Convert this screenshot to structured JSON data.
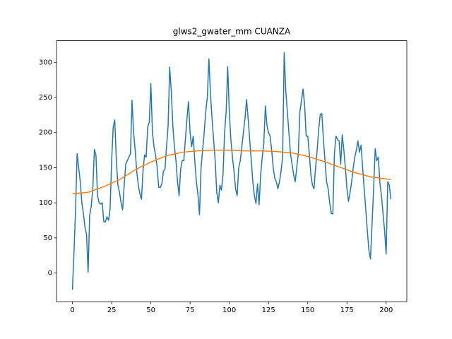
{
  "chart_data": {
    "type": "line",
    "title": "glws2_gwater_mm CUANZA",
    "xlim": [
      -10.15,
      213.15
    ],
    "ylim": [
      -40.9,
      330.9
    ],
    "xticks": [
      0,
      25,
      50,
      75,
      100,
      125,
      150,
      175,
      200
    ],
    "yticks": [
      0,
      50,
      100,
      150,
      200,
      250,
      300
    ],
    "series": [
      {
        "color": "#1f77b4",
        "x": [
          0,
          1,
          2,
          3,
          4,
          5,
          6,
          7,
          8,
          9,
          10,
          11,
          12,
          13,
          14,
          15,
          16,
          17,
          18,
          19,
          20,
          21,
          22,
          23,
          24,
          25,
          26,
          27,
          28,
          29,
          30,
          31,
          32,
          33,
          34,
          35,
          36,
          37,
          38,
          39,
          40,
          41,
          42,
          43,
          44,
          45,
          46,
          47,
          48,
          49,
          50,
          51,
          52,
          53,
          54,
          55,
          56,
          57,
          58,
          59,
          60,
          61,
          62,
          63,
          64,
          65,
          66,
          67,
          68,
          69,
          70,
          71,
          72,
          73,
          74,
          75,
          76,
          77,
          78,
          79,
          80,
          81,
          82,
          83,
          84,
          85,
          86,
          87,
          88,
          89,
          90,
          91,
          92,
          93,
          94,
          95,
          96,
          97,
          98,
          99,
          100,
          101,
          102,
          103,
          104,
          105,
          106,
          107,
          108,
          109,
          110,
          111,
          112,
          113,
          114,
          115,
          116,
          117,
          118,
          119,
          120,
          121,
          122,
          123,
          124,
          125,
          126,
          127,
          128,
          129,
          130,
          131,
          132,
          133,
          134,
          135,
          136,
          137,
          138,
          139,
          140,
          141,
          142,
          143,
          144,
          145,
          146,
          147,
          148,
          149,
          150,
          151,
          152,
          153,
          154,
          155,
          156,
          157,
          158,
          159,
          160,
          161,
          162,
          163,
          164,
          165,
          166,
          167,
          168,
          169,
          170,
          171,
          172,
          173,
          174,
          175,
          176,
          177,
          178,
          179,
          180,
          181,
          182,
          183,
          184,
          185,
          186,
          187,
          188,
          189,
          190,
          191,
          192,
          193,
          194,
          195,
          196,
          197,
          198,
          199,
          200,
          201,
          202,
          203
        ],
        "values": [
          -24,
          30,
          90,
          170,
          150,
          130,
          100,
          85,
          65,
          55,
          1,
          82,
          95,
          120,
          176,
          168,
          110,
          100,
          98,
          100,
          73,
          73,
          80,
          75,
          90,
          160,
          208,
          218,
          160,
          125,
          115,
          100,
          90,
          125,
          155,
          160,
          165,
          170,
          246,
          200,
          175,
          145,
          125,
          113,
          105,
          145,
          168,
          165,
          208,
          215,
          270,
          200,
          180,
          168,
          150,
          122,
          122,
          127,
          145,
          148,
          180,
          210,
          293,
          260,
          210,
          180,
          160,
          130,
          110,
          148,
          160,
          160,
          190,
          220,
          244,
          200,
          180,
          195,
          160,
          130,
          112,
          83,
          150,
          175,
          200,
          230,
          250,
          305,
          255,
          220,
          190,
          160,
          115,
          100,
          125,
          118,
          140,
          200,
          230,
          294,
          230,
          190,
          165,
          145,
          120,
          110,
          150,
          160,
          180,
          200,
          220,
          247,
          220,
          190,
          160,
          130,
          110,
          99,
          127,
          97,
          140,
          165,
          185,
          238,
          210,
          200,
          195,
          175,
          150,
          135,
          130,
          120,
          130,
          145,
          165,
          314,
          260,
          230,
          200,
          170,
          155,
          140,
          130,
          150,
          170,
          230,
          245,
          262,
          240,
          195,
          195,
          170,
          140,
          125,
          120,
          150,
          175,
          205,
          226,
          227,
          190,
          160,
          130,
          120,
          100,
          85,
          84,
          170,
          195,
          190,
          188,
          155,
          197,
          175,
          150,
          120,
          102,
          115,
          130,
          150,
          165,
          175,
          188,
          172,
          182,
          150,
          120,
          90,
          60,
          32,
          20,
          70,
          120,
          177,
          160,
          165,
          128,
          110,
          85,
          60,
          27,
          130,
          125,
          105
        ]
      },
      {
        "color": "#ff7f0e",
        "x": [
          0,
          10,
          20,
          30,
          40,
          50,
          60,
          70,
          80,
          90,
          100,
          110,
          120,
          130,
          140,
          150,
          160,
          170,
          180,
          190,
          200,
          203
        ],
        "values": [
          113,
          115,
          123,
          133,
          147,
          158,
          167,
          172,
          174,
          175,
          175,
          174,
          174,
          173,
          171,
          166,
          159,
          151,
          143,
          137,
          134,
          133
        ]
      }
    ]
  }
}
